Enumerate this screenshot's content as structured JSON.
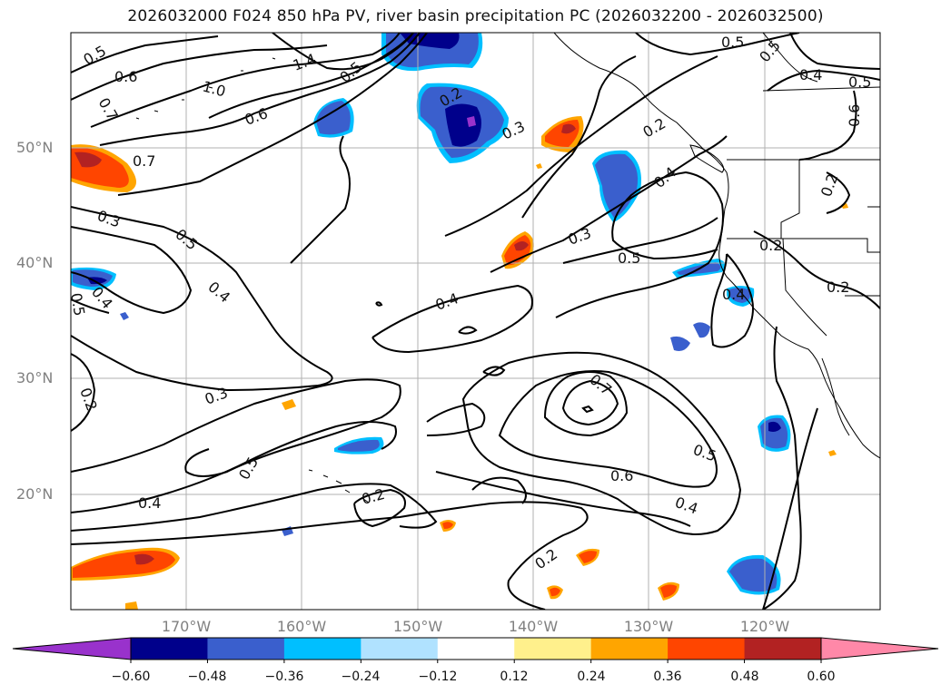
{
  "title": "2026032000 F024 850 hPa PV, river basin precipitation PC (2026032200 - 2026032500)",
  "map": {
    "lat_labels": [
      "50°N",
      "40°N",
      "30°N",
      "20°N"
    ],
    "lon_labels": [
      "170°W",
      "160°W",
      "150°W",
      "140°W",
      "130°W",
      "120°W"
    ],
    "gridline_color": "#b0b0b0",
    "contour_color": "#000000",
    "contour_labels": [
      "0.5",
      "0.6",
      "0.7",
      "1.4",
      "1.0",
      "0.6",
      "0.5",
      "0.2",
      "0.3",
      "0.5",
      "0.4",
      "0.5",
      "0.6",
      "0.7",
      "0.3",
      "0.5",
      "0.4",
      "0.4",
      "0.3",
      "0.4",
      "0.2",
      "0.2",
      "0.5",
      "0.4",
      "0.3",
      "0.2",
      "0.5",
      "0.4",
      "0.2",
      "0.7",
      "0.5",
      "0.6",
      "0.4",
      "0.2",
      "0.4",
      "0.5",
      "0.2",
      "0.2",
      "0.5"
    ]
  },
  "colorbar": {
    "ticks": [
      "−0.60",
      "−0.48",
      "−0.36",
      "−0.24",
      "−0.12",
      "0.12",
      "0.24",
      "0.36",
      "0.48",
      "0.60"
    ],
    "colors": [
      "#9932cc",
      "#00008b",
      "#3a5fcd",
      "#00bfff",
      "#b0e2ff",
      "#ffffff",
      "#fff08c",
      "#ffa500",
      "#ff4500",
      "#b22222",
      "#ff88a8"
    ]
  }
}
